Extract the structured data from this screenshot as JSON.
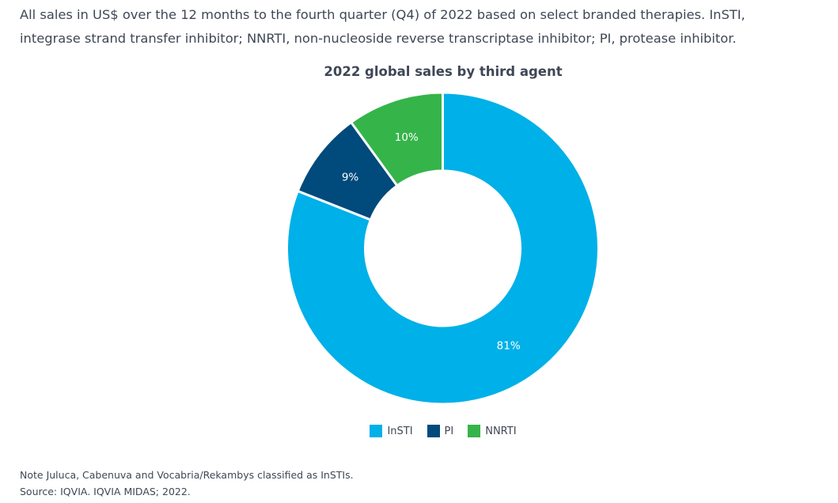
{
  "intro": {
    "line1": "All sales in US$ over the 12 months to the fourth quarter (Q4) of 2022 based on select branded therapies. InSTI,",
    "line2": "integrase strand transfer inhibitor; NNRTI, non-nucleoside reverse transcriptase inhibitor; PI, protease inhibitor."
  },
  "chart_data": {
    "type": "pie",
    "variant": "donut",
    "title": "2022 global sales by third agent",
    "unit": "%",
    "categories": [
      "InSTI",
      "PI",
      "NNRTI"
    ],
    "values": [
      81,
      9,
      10
    ],
    "labels": [
      "81%",
      "9%",
      "10%"
    ],
    "colors": [
      "#00b0e8",
      "#004a7c",
      "#35b44a"
    ],
    "start": "top",
    "direction": "clockwise",
    "legend": {
      "position": "bottom",
      "entries": [
        "InSTI",
        "PI",
        "NNRTI"
      ]
    }
  },
  "notes": {
    "note": "Note Juluca, Cabenuva and Vocabria/Rekambys classified as InSTIs.",
    "source": "Source: IQVIA. IQVIA MIDAS; 2022."
  }
}
